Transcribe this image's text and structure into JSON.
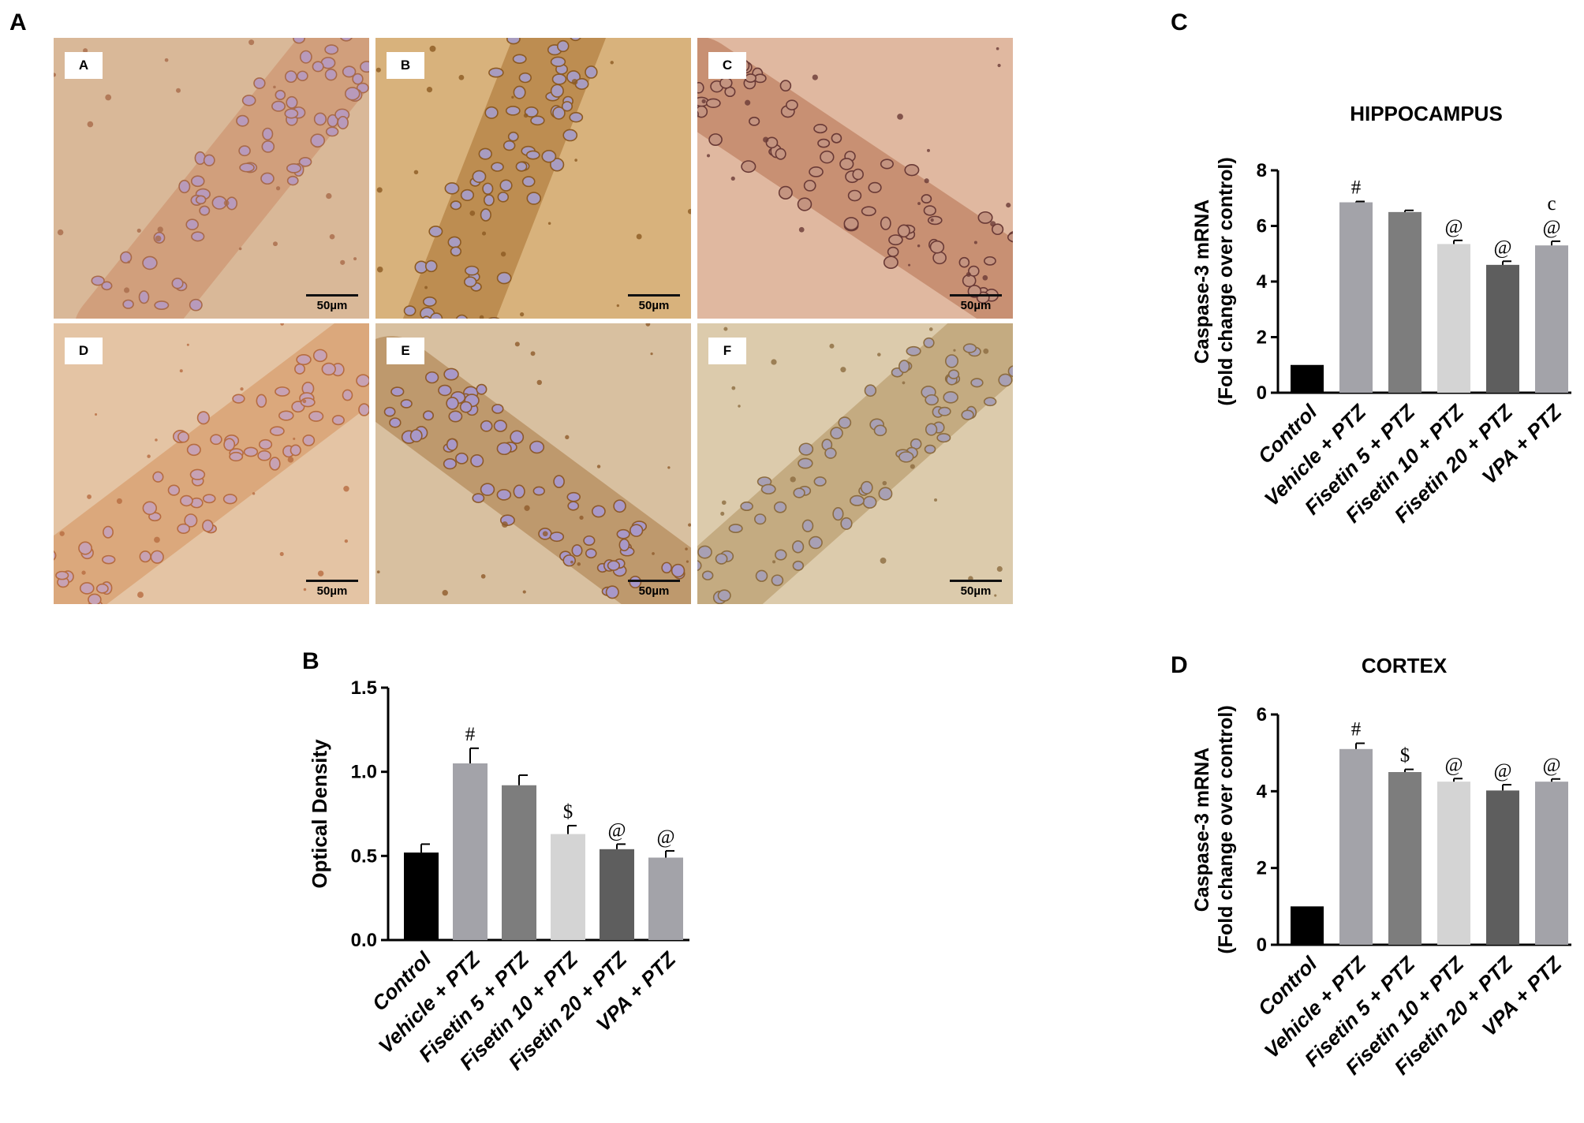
{
  "panel_letters": {
    "a": "A",
    "b": "B",
    "c": "C",
    "d": "D"
  },
  "micrographs": {
    "panels": [
      {
        "label": "A",
        "scale_bar": "50µm",
        "bg": "#d9b898",
        "cell_fill": "#b89abb",
        "cell_ring": "#a86a4a",
        "tone": "#cc8c66"
      },
      {
        "label": "B",
        "scale_bar": "50µm",
        "bg": "#d8b27c",
        "cell_fill": "#a89cc0",
        "cell_ring": "#8c5a22",
        "tone": "#a8702e"
      },
      {
        "label": "C",
        "scale_bar": "50µm",
        "bg": "#e0b8a0",
        "cell_fill": "#c49480",
        "cell_ring": "#6a3a36",
        "tone": "#b5704f"
      },
      {
        "label": "D",
        "scale_bar": "50µm",
        "bg": "#e4c4a4",
        "cell_fill": "#c7a2b4",
        "cell_ring": "#b66c40",
        "tone": "#d4925c"
      },
      {
        "label": "E",
        "scale_bar": "50µm",
        "bg": "#d8c0a0",
        "cell_fill": "#a898c8",
        "cell_ring": "#8e5a2a",
        "tone": "#aa7a44"
      },
      {
        "label": "F",
        "scale_bar": "50µm",
        "bg": "#dccbac",
        "cell_fill": "#a8a0b4",
        "cell_ring": "#8c6c40",
        "tone": "#b2925e"
      }
    ]
  },
  "bar_colors": [
    "#000000",
    "#a3a3a9",
    "#7d7d7d",
    "#d4d4d4",
    "#5e5e5e",
    "#a3a3a9"
  ],
  "chart_data": [
    {
      "id": "B",
      "type": "bar",
      "title": "",
      "xlabel": "",
      "ylabel": "Optical Density",
      "ylim": [
        0,
        1.5
      ],
      "yticks": [
        "0.0",
        "0.5",
        "1.0",
        "1.5"
      ],
      "categories": [
        "Control",
        "Vehicle + PTZ",
        "Fisetin 5 + PTZ",
        "Fisetin 10 + PTZ",
        "Fisetin 20 + PTZ",
        "VPA + PTZ"
      ],
      "values": [
        0.52,
        1.05,
        0.92,
        0.63,
        0.54,
        0.49
      ],
      "errors": [
        0.05,
        0.09,
        0.06,
        0.05,
        0.03,
        0.04
      ],
      "annotations": [
        "",
        "#",
        "",
        "$",
        "@",
        "@"
      ],
      "grid": false
    },
    {
      "id": "C",
      "type": "bar",
      "title": "HIPPOCAMPUS",
      "xlabel": "",
      "ylabel": "Caspase-3 mRNA",
      "ylabel2": "(Fold change over control)",
      "ylim": [
        0,
        8
      ],
      "yticks": [
        "0",
        "2",
        "4",
        "6",
        "8"
      ],
      "categories": [
        "Control",
        "Vehicle + PTZ",
        "Fisetin 5 + PTZ",
        "Fisetin 10 + PTZ",
        "Fisetin 20 + PTZ",
        "VPA + PTZ"
      ],
      "values": [
        1.0,
        6.85,
        6.5,
        5.35,
        4.6,
        5.3
      ],
      "errors": [
        0.0,
        0.03,
        0.06,
        0.13,
        0.13,
        0.15
      ],
      "annotations": [
        "",
        "#",
        "",
        "@",
        "@",
        "c\n@"
      ],
      "grid": false
    },
    {
      "id": "D",
      "type": "bar",
      "title": "CORTEX",
      "xlabel": "",
      "ylabel": "Caspase-3 mRNA",
      "ylabel2": "(Fold change over control)",
      "ylim": [
        0,
        6
      ],
      "yticks": [
        "0",
        "2",
        "4",
        "6"
      ],
      "categories": [
        "Control",
        "Vehicle + PTZ",
        "Fisetin 5 + PTZ",
        "Fisetin 10 + PTZ",
        "Fisetin 20 + PTZ",
        "VPA + PTZ"
      ],
      "values": [
        1.0,
        5.1,
        4.5,
        4.25,
        4.02,
        4.25
      ],
      "errors": [
        0.0,
        0.15,
        0.07,
        0.08,
        0.15,
        0.07
      ],
      "annotations": [
        "",
        "#",
        "$",
        "@",
        "@",
        "@"
      ],
      "grid": false
    }
  ]
}
